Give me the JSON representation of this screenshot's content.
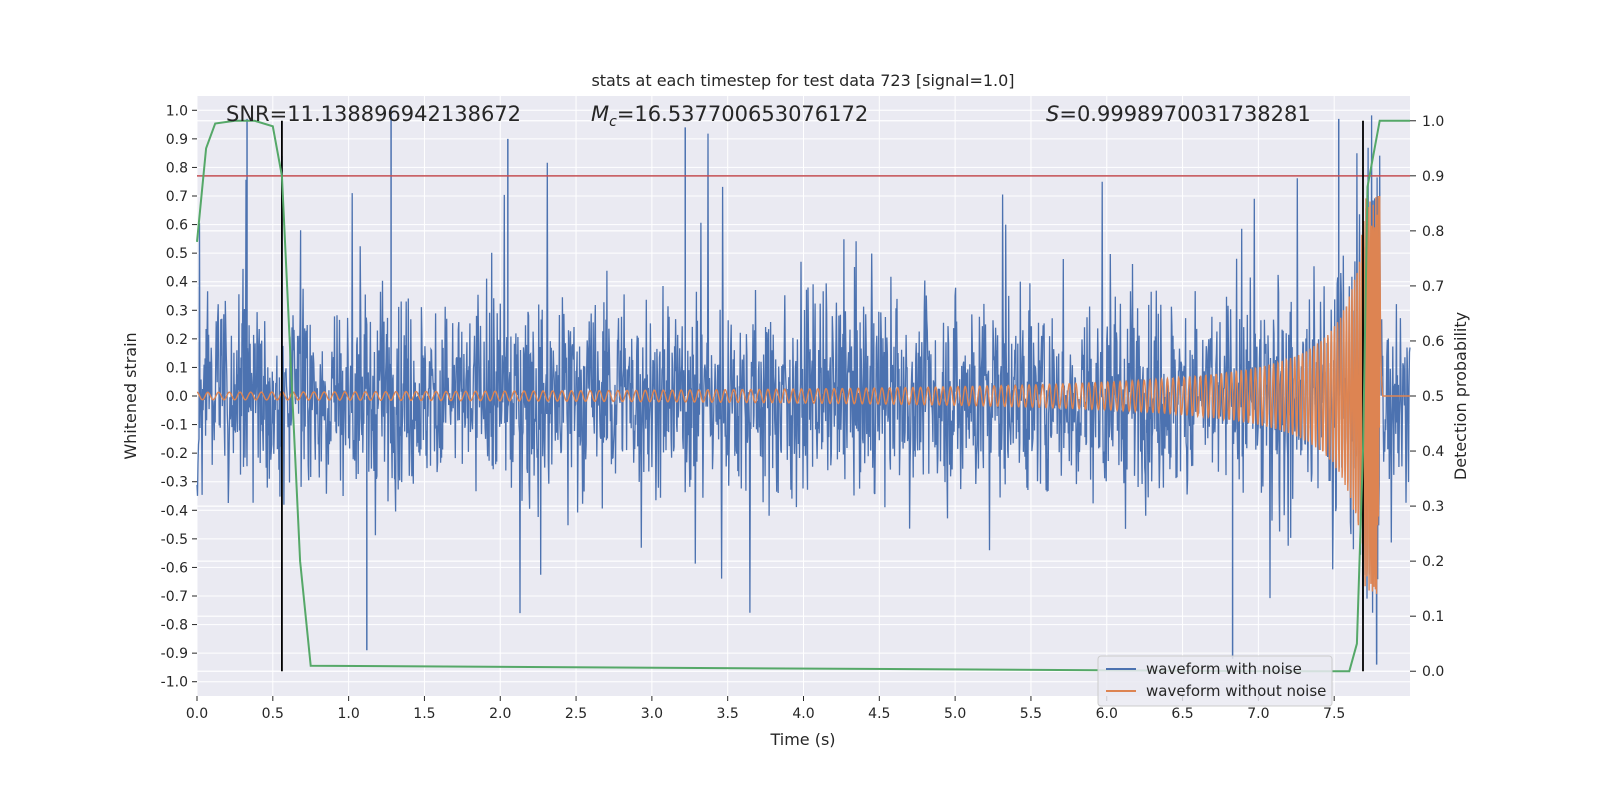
{
  "chart_data": {
    "type": "line",
    "title": "stats at each timestep for test data 723 [signal=1.0]",
    "xlabel": "Time (s)",
    "ylabel": "Whitened strain",
    "y2label": "Detection probability",
    "xlim": [
      0.0,
      8.0
    ],
    "ylim": [
      -1.05,
      1.05
    ],
    "y2lim": [
      -0.045,
      1.045
    ],
    "xticks": [
      "0.0",
      "0.5",
      "1.0",
      "1.5",
      "2.0",
      "2.5",
      "3.0",
      "3.5",
      "4.0",
      "4.5",
      "5.0",
      "5.5",
      "6.0",
      "6.5",
      "7.0",
      "7.5"
    ],
    "yticks": [
      "1.0",
      "0.9",
      "0.8",
      "0.7",
      "0.6",
      "0.5",
      "0.4",
      "0.3",
      "0.2",
      "0.1",
      "0.0",
      "-0.1",
      "-0.2",
      "-0.3",
      "-0.4",
      "-0.5",
      "-0.6",
      "-0.7",
      "-0.8",
      "-0.9",
      "-1.0"
    ],
    "y2ticks": [
      "1.0",
      "0.9",
      "0.8",
      "0.7",
      "0.6",
      "0.5",
      "0.4",
      "0.3",
      "0.2",
      "0.1",
      "0.0"
    ],
    "grid": true,
    "stats": {
      "snr": "SNR=11.138896942138672",
      "mc_symbol": "M",
      "mc_sub": "c",
      "mc_value": "=16.537700653076172",
      "s_symbol": "S",
      "s_value": "=0.9998970031738281"
    },
    "threshold_line": {
      "y2": 0.9,
      "color": "#c44e52"
    },
    "vertical_lines": [
      0.56,
      7.69
    ],
    "detection_probability": {
      "t": [
        0.0,
        0.06,
        0.12,
        0.25,
        0.38,
        0.5,
        0.56,
        0.62,
        0.68,
        0.75,
        7.0,
        7.6,
        7.65,
        7.69,
        7.72,
        7.8,
        8.0
      ],
      "p": [
        0.78,
        0.95,
        0.995,
        1.0,
        1.0,
        0.99,
        0.9,
        0.55,
        0.2,
        0.01,
        0.0,
        0.0,
        0.05,
        0.4,
        0.88,
        1.0,
        1.0
      ]
    },
    "series": [
      {
        "name": "waveform with noise",
        "color": "#4c72b0",
        "noise_band": 0.35,
        "max_spike": 1.0,
        "min_spike": -0.94
      },
      {
        "name": "waveform without noise",
        "color": "#dd8452",
        "amp_start": 0.013,
        "amp_peak": 0.7,
        "merger_t": 7.8
      }
    ],
    "legend": {
      "position": "lower-right",
      "entries": [
        "waveform with noise",
        "waveform without noise"
      ]
    },
    "colors": {
      "plot_bg": "#eaeaf2",
      "grid": "#ffffff",
      "prob": "#55a868",
      "vline": "#000000"
    }
  }
}
